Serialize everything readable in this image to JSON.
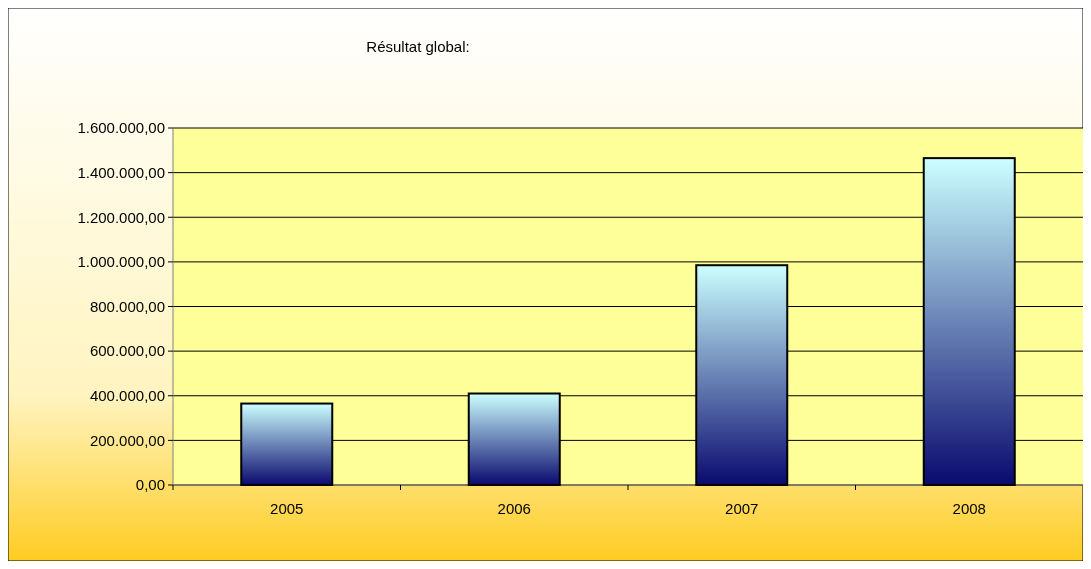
{
  "chart_data": {
    "type": "bar",
    "title": "Résultat global:",
    "categories": [
      "2005",
      "2006",
      "2007",
      "2008"
    ],
    "values": [
      365000,
      410000,
      985000,
      1465000
    ],
    "color": "#ccffff",
    "ylim": [
      0,
      1600000
    ],
    "yticks": [
      {
        "value": 0,
        "label": "0,00"
      },
      {
        "value": 200000,
        "label": "200.000,00"
      },
      {
        "value": 400000,
        "label": "400.000,00"
      },
      {
        "value": 600000,
        "label": "600.000,00"
      },
      {
        "value": 800000,
        "label": "800.000,00"
      },
      {
        "value": 1000000,
        "label": "1.000.000,00"
      },
      {
        "value": 1200000,
        "label": "1.200.000,00"
      },
      {
        "value": 1400000,
        "label": "1.400.000,00"
      },
      {
        "value": 1600000,
        "label": "1.600.000,00"
      }
    ],
    "grid": "y"
  }
}
